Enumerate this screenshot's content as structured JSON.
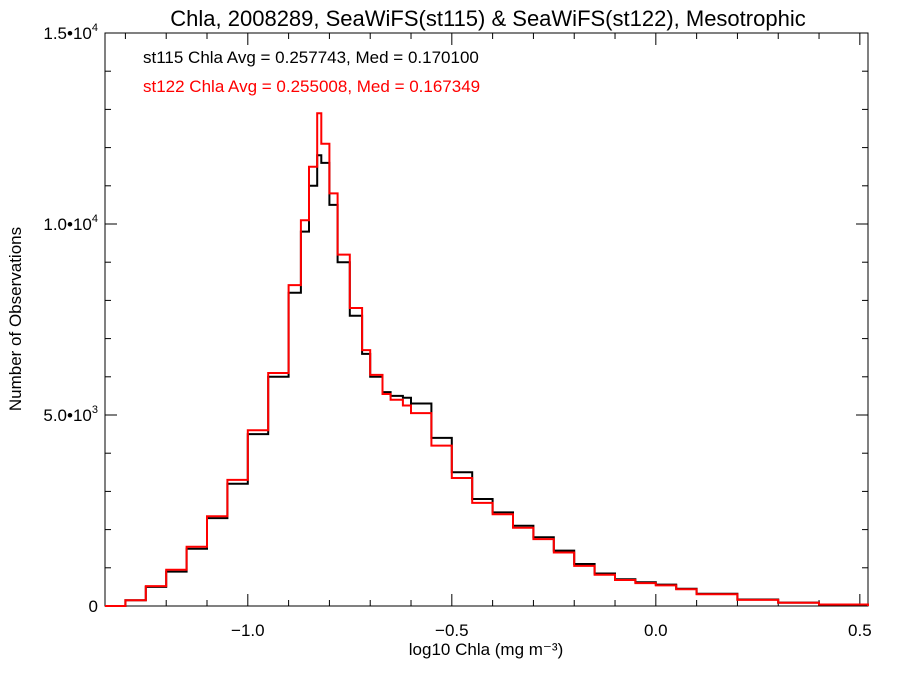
{
  "chart_data": {
    "type": "line",
    "step": true,
    "title": "Chla, 2008289, SeaWiFS(st115) & SeaWiFS(st122), Mesotrophic",
    "xlabel": "log10 Chla (mg m⁻³)",
    "ylabel": "Number of Observations",
    "xlim": [
      -1.35,
      0.52
    ],
    "ylim": [
      0,
      15000
    ],
    "x_ticks": [
      {
        "value": -1.0,
        "label": "−1.0"
      },
      {
        "value": -0.5,
        "label": "−0.5"
      },
      {
        "value": 0.0,
        "label": "0.0"
      },
      {
        "value": 0.5,
        "label": "0.5"
      }
    ],
    "y_ticks": [
      {
        "value": 0,
        "label": "0"
      },
      {
        "value": 5000,
        "label": "5.0•10",
        "exp": "3"
      },
      {
        "value": 10000,
        "label": "1.0•10",
        "exp": "4"
      },
      {
        "value": 15000,
        "label": "1.5•10",
        "exp": "4"
      }
    ],
    "grid": false,
    "annotations": [
      {
        "text": "st115 Chla Avg = 0.257743, Med = 0.170100",
        "color": "#000000"
      },
      {
        "text": "st122 Chla Avg = 0.255008, Med = 0.167349",
        "color": "#ff0000"
      }
    ],
    "series": [
      {
        "color": "#000000",
        "x": [
          -1.35,
          -1.3,
          -1.25,
          -1.2,
          -1.15,
          -1.1,
          -1.05,
          -1.0,
          -0.95,
          -0.9,
          -0.87,
          -0.85,
          -0.83,
          -0.82,
          -0.8,
          -0.78,
          -0.75,
          -0.72,
          -0.7,
          -0.67,
          -0.65,
          -0.62,
          -0.6,
          -0.55,
          -0.5,
          -0.45,
          -0.4,
          -0.35,
          -0.3,
          -0.25,
          -0.2,
          -0.15,
          -0.1,
          -0.05,
          0.0,
          0.05,
          0.1,
          0.2,
          0.3,
          0.4,
          0.52
        ],
        "y": [
          0,
          150,
          500,
          900,
          1500,
          2300,
          3200,
          4500,
          6000,
          8200,
          9800,
          11000,
          11800,
          11600,
          10500,
          9000,
          7600,
          6600,
          6000,
          5600,
          5500,
          5450,
          5300,
          4400,
          3500,
          2800,
          2450,
          2100,
          1800,
          1450,
          1100,
          850,
          700,
          620,
          560,
          450,
          320,
          170,
          90,
          40,
          0
        ]
      },
      {
        "color": "#ff0000",
        "x": [
          -1.35,
          -1.3,
          -1.25,
          -1.2,
          -1.15,
          -1.1,
          -1.05,
          -1.0,
          -0.95,
          -0.9,
          -0.87,
          -0.85,
          -0.83,
          -0.82,
          -0.8,
          -0.78,
          -0.75,
          -0.72,
          -0.7,
          -0.67,
          -0.65,
          -0.62,
          -0.6,
          -0.55,
          -0.5,
          -0.45,
          -0.4,
          -0.35,
          -0.3,
          -0.25,
          -0.2,
          -0.15,
          -0.1,
          -0.05,
          0.0,
          0.05,
          0.1,
          0.2,
          0.3,
          0.4,
          0.52
        ],
        "y": [
          0,
          150,
          520,
          950,
          1550,
          2350,
          3300,
          4600,
          6100,
          8400,
          10100,
          11500,
          12900,
          12100,
          10800,
          9200,
          7800,
          6700,
          6050,
          5550,
          5400,
          5250,
          5050,
          4200,
          3350,
          2700,
          2400,
          2050,
          1750,
          1400,
          1050,
          820,
          680,
          600,
          540,
          440,
          310,
          160,
          85,
          38,
          0
        ]
      }
    ]
  }
}
